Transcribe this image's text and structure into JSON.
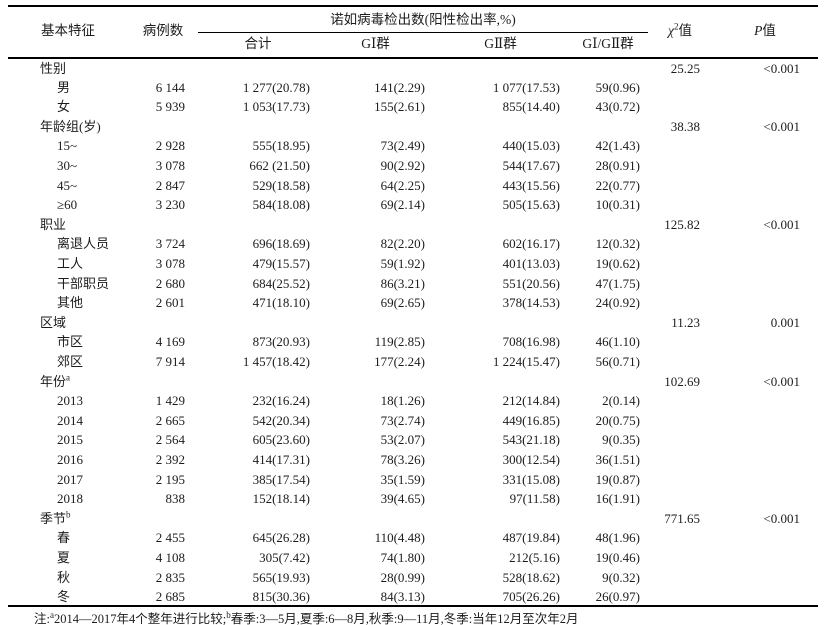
{
  "colors": {
    "text": "#1c1c1c",
    "border": "#000000",
    "background": "#ffffff"
  },
  "table": {
    "header": {
      "col_label": "基本特征",
      "col_cases": "病例数",
      "span_label": "诺如病毒检出数(阳性检出率,%)",
      "sub": [
        "合计",
        "GⅠ群",
        "GⅡ群",
        "GⅠ/GⅡ群"
      ],
      "chi": {
        "symbol": "χ",
        "sup": "2",
        "suffix": "值"
      },
      "p": {
        "symbol": "P",
        "suffix": "值"
      }
    },
    "rows": [
      {
        "kind": "section",
        "label": "性别",
        "chi": "25.25",
        "p": "<0.001"
      },
      {
        "kind": "data",
        "label": "男",
        "cases": "6 144",
        "total": "1 277(20.78)",
        "g1": "141(2.29)",
        "g2": "1 077(17.53)",
        "g12": "59(0.96)"
      },
      {
        "kind": "data",
        "label": "女",
        "cases": "5 939",
        "total": "1 053(17.73)",
        "g1": "155(2.61)",
        "g2": "855(14.40)",
        "g12": "43(0.72)"
      },
      {
        "kind": "section",
        "label": "年龄组(岁)",
        "chi": "38.38",
        "p": "<0.001"
      },
      {
        "kind": "data",
        "label": "15~",
        "cases": "2 928",
        "total": "555(18.95)",
        "g1": "73(2.49)",
        "g2": "440(15.03)",
        "g12": "42(1.43)"
      },
      {
        "kind": "data",
        "label": "30~",
        "cases": "3 078",
        "total": "662 (21.50)",
        "g1": "90(2.92)",
        "g2": "544(17.67)",
        "g12": "28(0.91)"
      },
      {
        "kind": "data",
        "label": "45~",
        "cases": "2 847",
        "total": "529(18.58)",
        "g1": "64(2.25)",
        "g2": "443(15.56)",
        "g12": "22(0.77)"
      },
      {
        "kind": "data",
        "label": "≥60",
        "cases": "3 230",
        "total": "584(18.08)",
        "g1": "69(2.14)",
        "g2": "505(15.63)",
        "g12": "10(0.31)"
      },
      {
        "kind": "section",
        "label": "职业",
        "chi": "125.82",
        "p": "<0.001"
      },
      {
        "kind": "data",
        "label": "离退人员",
        "cases": "3 724",
        "total": "696(18.69)",
        "g1": "82(2.20)",
        "g2": "602(16.17)",
        "g12": "12(0.32)"
      },
      {
        "kind": "data",
        "label": "工人",
        "cases": "3 078",
        "total": "479(15.57)",
        "g1": "59(1.92)",
        "g2": "401(13.03)",
        "g12": "19(0.62)"
      },
      {
        "kind": "data",
        "label": "干部职员",
        "cases": "2 680",
        "total": "684(25.52)",
        "g1": "86(3.21)",
        "g2": "551(20.56)",
        "g12": "47(1.75)"
      },
      {
        "kind": "data",
        "label": "其他",
        "cases": "2 601",
        "total": "471(18.10)",
        "g1": "69(2.65)",
        "g2": "378(14.53)",
        "g12": "24(0.92)"
      },
      {
        "kind": "section",
        "label": "区域",
        "chi": "11.23",
        "p": "0.001"
      },
      {
        "kind": "data",
        "label": "市区",
        "cases": "4 169",
        "total": "873(20.93)",
        "g1": "119(2.85)",
        "g2": "708(16.98)",
        "g12": "46(1.10)"
      },
      {
        "kind": "data",
        "label": "郊区",
        "cases": "7 914",
        "total": "1 457(18.42)",
        "g1": "177(2.24)",
        "g2": "1 224(15.47)",
        "g12": "56(0.71)"
      },
      {
        "kind": "section",
        "label": "年份",
        "sup": "a",
        "chi": "102.69",
        "p": "<0.001"
      },
      {
        "kind": "data",
        "label": "2013",
        "cases": "1 429",
        "total": "232(16.24)",
        "g1": "18(1.26)",
        "g2": "212(14.84)",
        "g12": "2(0.14)"
      },
      {
        "kind": "data",
        "label": "2014",
        "cases": "2 665",
        "total": "542(20.34)",
        "g1": "73(2.74)",
        "g2": "449(16.85)",
        "g12": "20(0.75)"
      },
      {
        "kind": "data",
        "label": "2015",
        "cases": "2 564",
        "total": "605(23.60)",
        "g1": "53(2.07)",
        "g2": "543(21.18)",
        "g12": "9(0.35)"
      },
      {
        "kind": "data",
        "label": "2016",
        "cases": "2 392",
        "total": "414(17.31)",
        "g1": "78(3.26)",
        "g2": "300(12.54)",
        "g12": "36(1.51)"
      },
      {
        "kind": "data",
        "label": "2017",
        "cases": "2 195",
        "total": "385(17.54)",
        "g1": "35(1.59)",
        "g2": "331(15.08)",
        "g12": "19(0.87)"
      },
      {
        "kind": "data",
        "label": "2018",
        "cases": "838",
        "total": "152(18.14)",
        "g1": "39(4.65)",
        "g2": "97(11.58)",
        "g12": "16(1.91)"
      },
      {
        "kind": "section",
        "label": "季节",
        "sup": "b",
        "chi": "771.65",
        "p": "<0.001"
      },
      {
        "kind": "data",
        "label": "春",
        "cases": "2 455",
        "total": "645(26.28)",
        "g1": "110(4.48)",
        "g2": "487(19.84)",
        "g12": "48(1.96)"
      },
      {
        "kind": "data",
        "label": "夏",
        "cases": "4 108",
        "total": "305(7.42)",
        "g1": "74(1.80)",
        "g2": "212(5.16)",
        "g12": "19(0.46)"
      },
      {
        "kind": "data",
        "label": "秋",
        "cases": "2 835",
        "total": "565(19.93)",
        "g1": "28(0.99)",
        "g2": "528(18.62)",
        "g12": "9(0.32)"
      },
      {
        "kind": "data",
        "label": "冬",
        "cases": "2 685",
        "total": "815(30.36)",
        "g1": "84(3.13)",
        "g2": "705(26.26)",
        "g12": "26(0.97)"
      }
    ],
    "footnote_parts": [
      {
        "text": "注:"
      },
      {
        "sup": "a"
      },
      {
        "text": "2014—2017年4个整年进行比较;"
      },
      {
        "sup": "b"
      },
      {
        "text": "春季:3—5月,夏季:6—8月,秋季:9—11月,冬季:当年12月至次年2月"
      }
    ]
  }
}
